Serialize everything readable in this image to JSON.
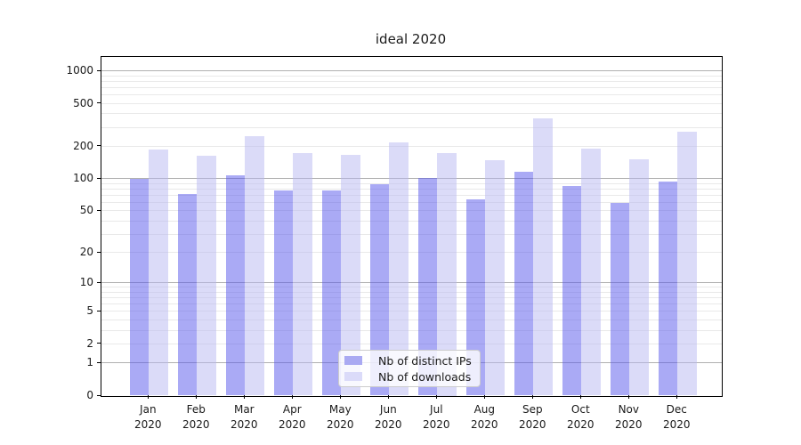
{
  "chart_data": {
    "type": "bar",
    "title": "ideal 2020",
    "categories": [
      "Jan",
      "Feb",
      "Mar",
      "Apr",
      "May",
      "Jun",
      "Jul",
      "Aug",
      "Sep",
      "Oct",
      "Nov",
      "Dec"
    ],
    "category_year": "2020",
    "series": [
      {
        "name": "Nb of distinct IPs",
        "fill_rgba": "rgba(85,85,235,0.5)",
        "swatch_color": "#aaaaf2",
        "values": [
          100,
          72,
          107,
          77,
          77,
          88,
          102,
          64,
          115,
          86,
          59,
          93
        ]
      },
      {
        "name": "Nb of downloads",
        "fill_rgba": "rgba(183,183,242,0.5)",
        "swatch_color": "#dbdbf9",
        "values": [
          187,
          162,
          249,
          172,
          167,
          219,
          174,
          149,
          366,
          189,
          152,
          272
        ]
      }
    ],
    "yscale": "log1p",
    "ylim": [
      0,
      1342
    ],
    "yticks": [
      0,
      1,
      2,
      5,
      10,
      20,
      50,
      100,
      200,
      500,
      1000
    ],
    "grid": {
      "major_values": [
        1,
        10,
        100,
        1000
      ],
      "minor_values": [
        2,
        3,
        4,
        5,
        6,
        7,
        8,
        9,
        20,
        30,
        40,
        50,
        60,
        70,
        80,
        90,
        200,
        300,
        400,
        500,
        600,
        700,
        800,
        900
      ],
      "major_color": "#b0b0b0",
      "minor_color": "#e9e9e9"
    },
    "legend": {
      "position": "lower-center",
      "entries": [
        "Nb of distinct IPs",
        "Nb of downloads"
      ]
    },
    "xlabel": "",
    "ylabel": ""
  }
}
